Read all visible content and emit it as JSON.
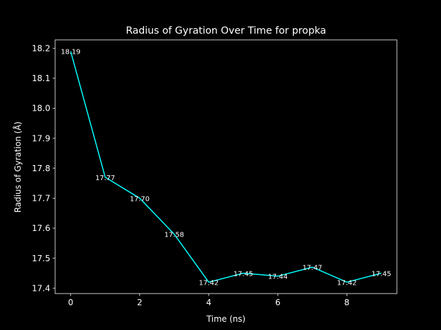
{
  "chart_data": {
    "type": "line",
    "title": "Radius of Gyration Over Time for propka",
    "xlabel": "Time (ns)",
    "ylabel": "Radius of Gyration (Å)",
    "x": [
      0,
      1,
      2,
      3,
      4,
      5,
      6,
      7,
      8,
      9
    ],
    "series": [
      {
        "values": [
          18.19,
          17.77,
          17.7,
          17.58,
          17.42,
          17.45,
          17.44,
          17.47,
          17.42,
          17.45
        ],
        "labels": [
          "18.19",
          "17.77",
          "17.70",
          "17.58",
          "17.42",
          "17.45",
          "17.44",
          "17.47",
          "17.42",
          "17.45"
        ],
        "color": "#00ffff"
      }
    ],
    "xlim": [
      -0.45,
      9.45
    ],
    "ylim": [
      17.382,
      18.228
    ],
    "xticks": [
      0,
      2,
      4,
      6,
      8
    ],
    "xtick_labels": [
      "0",
      "2",
      "4",
      "6",
      "8"
    ],
    "yticks": [
      17.4,
      17.5,
      17.6,
      17.7,
      17.8,
      17.9,
      18.0,
      18.1,
      18.2
    ],
    "ytick_labels": [
      "17.4",
      "17.5",
      "17.6",
      "17.7",
      "17.8",
      "17.9",
      "18.0",
      "18.1",
      "18.2"
    ],
    "grid": false,
    "background": "#000000",
    "foreground": "#ffffff"
  }
}
